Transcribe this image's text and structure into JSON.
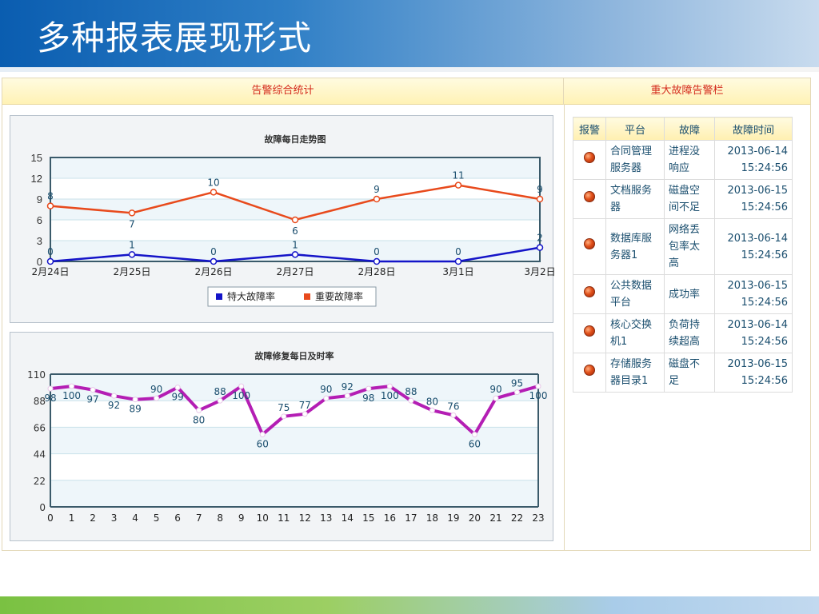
{
  "slide": {
    "title": "多种报表展现形式"
  },
  "panel": {
    "left_header": "告警综合统计",
    "right_header": "重大故障告警栏"
  },
  "colors": {
    "critical_series": "#1414c8",
    "important_series": "#e84a1c",
    "repair_series": "#b41eb4",
    "header_text": "#d42a1c"
  },
  "chart_data": [
    {
      "type": "line",
      "title": "故障每日走势图",
      "categories": [
        "2月24日",
        "2月25日",
        "2月26日",
        "2月27日",
        "2月28日",
        "3月1日",
        "3月2日"
      ],
      "series": [
        {
          "name": "特大故障率",
          "values": [
            0,
            1,
            0,
            1,
            0,
            0,
            2
          ]
        },
        {
          "name": "重要故障率",
          "values": [
            8,
            7,
            10,
            6,
            9,
            11,
            9
          ]
        }
      ],
      "y_ticks": [
        0,
        3,
        6,
        9,
        12,
        15
      ],
      "ylim": [
        0,
        15
      ],
      "grid": true,
      "legend_position": "bottom-center"
    },
    {
      "type": "line",
      "title": "故障修复每日及时率",
      "x": [
        0,
        1,
        2,
        3,
        4,
        5,
        6,
        7,
        8,
        9,
        10,
        11,
        12,
        13,
        14,
        15,
        16,
        17,
        18,
        19,
        20,
        21,
        22,
        23
      ],
      "series": [
        {
          "name": "",
          "values": [
            98,
            100,
            97,
            92,
            89,
            90,
            99,
            80,
            88,
            100,
            60,
            75,
            77,
            90,
            92,
            98,
            100,
            88,
            80,
            76,
            60,
            90,
            95,
            100
          ]
        }
      ],
      "y_ticks": [
        0,
        22,
        44,
        66,
        88,
        110
      ],
      "ylim": [
        0,
        110
      ],
      "grid": true
    }
  ],
  "alarm_table": {
    "headers": [
      "报警",
      "平台",
      "故障",
      "故障时间"
    ],
    "rows": [
      {
        "platform": [
          "合同管理",
          "服务器"
        ],
        "fault": [
          "进程没",
          "响应"
        ],
        "date": "2013-06-14",
        "time": "15:24:56"
      },
      {
        "platform": [
          "文档服务",
          "器"
        ],
        "fault": [
          "磁盘空",
          "间不足"
        ],
        "date": "2013-06-15",
        "time": "15:24:56"
      },
      {
        "platform": [
          "数据库服",
          "务器1"
        ],
        "fault": [
          "网络丢",
          "包率太",
          "高"
        ],
        "date": "2013-06-14",
        "time": "15:24:56"
      },
      {
        "platform": [
          "公共数据",
          "平台"
        ],
        "fault": [
          "成功率"
        ],
        "date": "2013-06-15",
        "time": "15:24:56"
      },
      {
        "platform": [
          "核心交换",
          "机1"
        ],
        "fault": [
          "负荷持",
          "续超高"
        ],
        "date": "2013-06-14",
        "time": "15:24:56"
      },
      {
        "platform": [
          "存储服务",
          "器目录1"
        ],
        "fault": [
          "磁盘不",
          "足"
        ],
        "date": "2013-06-15",
        "time": "15:24:56"
      }
    ]
  }
}
